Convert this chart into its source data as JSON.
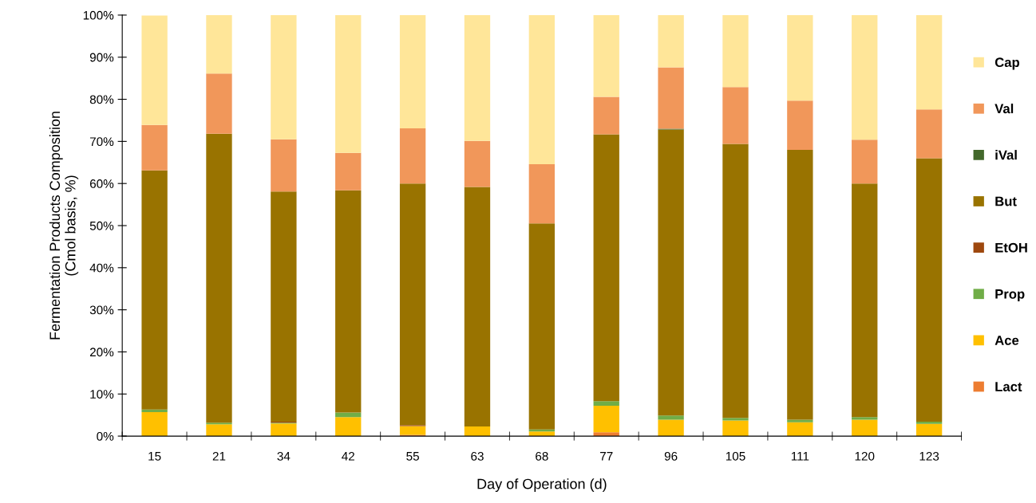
{
  "chart_data": {
    "type": "bar",
    "stacked": true,
    "xlabel": "Day of Operation (d)",
    "ylabel": "Fermentation Products Composition\n(Cmol basis, %)",
    "categories": [
      "15",
      "21",
      "34",
      "42",
      "55",
      "63",
      "68",
      "77",
      "96",
      "105",
      "111",
      "120",
      "123"
    ],
    "series": [
      {
        "name": "Lact",
        "color": "#ed7d31",
        "values": [
          0,
          0,
          0,
          0,
          0.3,
          0,
          0,
          0.9,
          0,
          0,
          0,
          0,
          0
        ]
      },
      {
        "name": "Ace",
        "color": "#ffc000",
        "values": [
          5.7,
          2.8,
          3.0,
          4.5,
          2.1,
          2.3,
          1.1,
          6.3,
          3.9,
          3.7,
          3.3,
          3.9,
          2.9
        ]
      },
      {
        "name": "Prop",
        "color": "#70ad47",
        "values": [
          0.6,
          0.4,
          0.2,
          1.1,
          0,
          0,
          0.5,
          1.1,
          1.0,
          0.6,
          0.6,
          0.6,
          0.5
        ]
      },
      {
        "name": "EtOH",
        "color": "#9e480e",
        "values": [
          0,
          0,
          0.2,
          0,
          0.2,
          0,
          0,
          0,
          0,
          0,
          0,
          0,
          0
        ]
      },
      {
        "name": "But",
        "color": "#997300",
        "values": [
          56.8,
          68.6,
          54.7,
          52.8,
          57.4,
          56.9,
          48.9,
          63.4,
          67.9,
          65.1,
          64.1,
          55.5,
          62.6
        ]
      },
      {
        "name": "iVal",
        "color": "#43682b",
        "values": [
          0,
          0,
          0,
          0,
          0,
          0,
          0,
          0,
          0.2,
          0,
          0,
          0,
          0
        ]
      },
      {
        "name": "Val",
        "color": "#f1975a",
        "values": [
          10.8,
          14.3,
          12.4,
          8.9,
          13.1,
          10.9,
          14.1,
          8.9,
          14.6,
          13.5,
          11.7,
          10.4,
          11.6
        ]
      },
      {
        "name": "Cap",
        "color": "#ffe699",
        "values": [
          26.0,
          13.9,
          29.5,
          32.7,
          26.9,
          29.9,
          35.4,
          19.4,
          12.4,
          17.1,
          20.3,
          29.6,
          22.4
        ]
      }
    ],
    "ylim": [
      0,
      100
    ],
    "yticks": [
      {
        "value": 0,
        "label": "0%"
      },
      {
        "value": 10,
        "label": "10%"
      },
      {
        "value": 20,
        "label": "20%"
      },
      {
        "value": 30,
        "label": "30%"
      },
      {
        "value": 40,
        "label": "40%"
      },
      {
        "value": 50,
        "label": "50%"
      },
      {
        "value": 60,
        "label": "60%"
      },
      {
        "value": 70,
        "label": "70%"
      },
      {
        "value": 80,
        "label": "80%"
      },
      {
        "value": 90,
        "label": "90%"
      },
      {
        "value": 100,
        "label": "100%"
      }
    ],
    "legend": "right",
    "grid": false
  }
}
